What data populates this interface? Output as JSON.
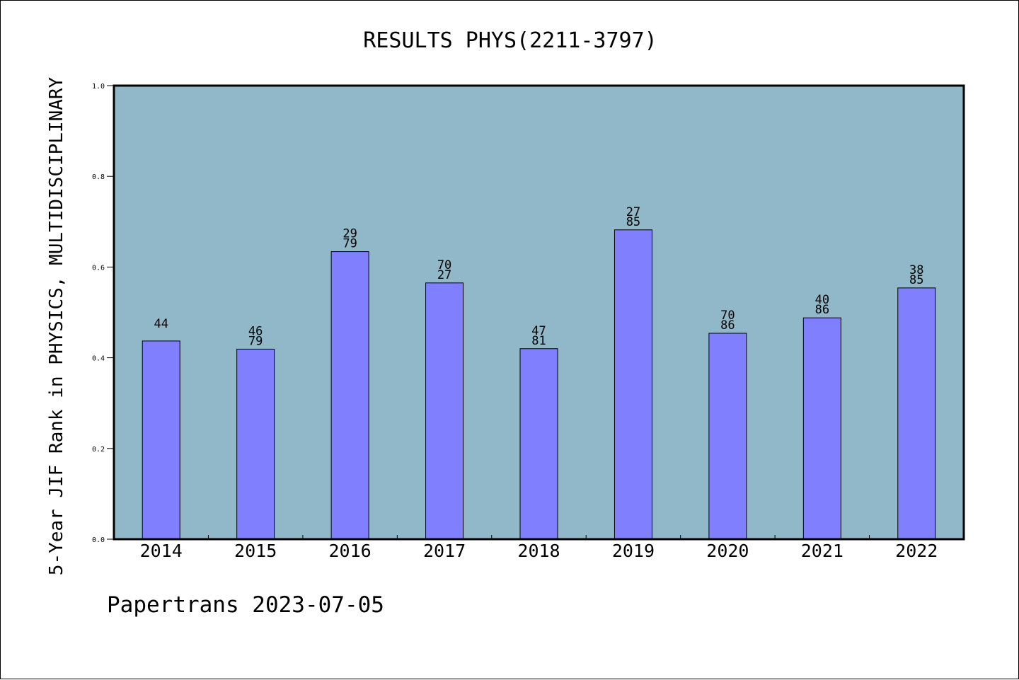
{
  "chart_data": {
    "type": "bar",
    "title": "RESULTS PHYS(2211-3797)",
    "ylabel": "5-Year JIF Rank in PHYSICS, MULTIDISCIPLINARY",
    "xlabel": "",
    "categories": [
      "2014",
      "2015",
      "2016",
      "2017",
      "2018",
      "2019",
      "2020",
      "2021",
      "2022"
    ],
    "values": [
      0.437,
      0.419,
      0.634,
      0.565,
      0.42,
      0.682,
      0.454,
      0.488,
      0.554
    ],
    "labels": [
      [
        "44"
      ],
      [
        "46",
        "79"
      ],
      [
        "29",
        "79"
      ],
      [
        "70",
        "27"
      ],
      [
        "47",
        "81"
      ],
      [
        "27",
        "85"
      ],
      [
        "70",
        "86"
      ],
      [
        "40",
        "86"
      ],
      [
        "38",
        "85"
      ]
    ],
    "ylim": [
      0,
      1.0
    ],
    "yticks": [
      "0.0",
      "0.2",
      "0.4",
      "0.6",
      "0.8",
      "1.0"
    ],
    "grid": false,
    "footer": "Papertrans 2023-07-05",
    "colors": {
      "plot_background": "#90b8c8",
      "bar_fill": "#8080ff",
      "bar_stroke": "#000000",
      "text": "#000000"
    }
  }
}
